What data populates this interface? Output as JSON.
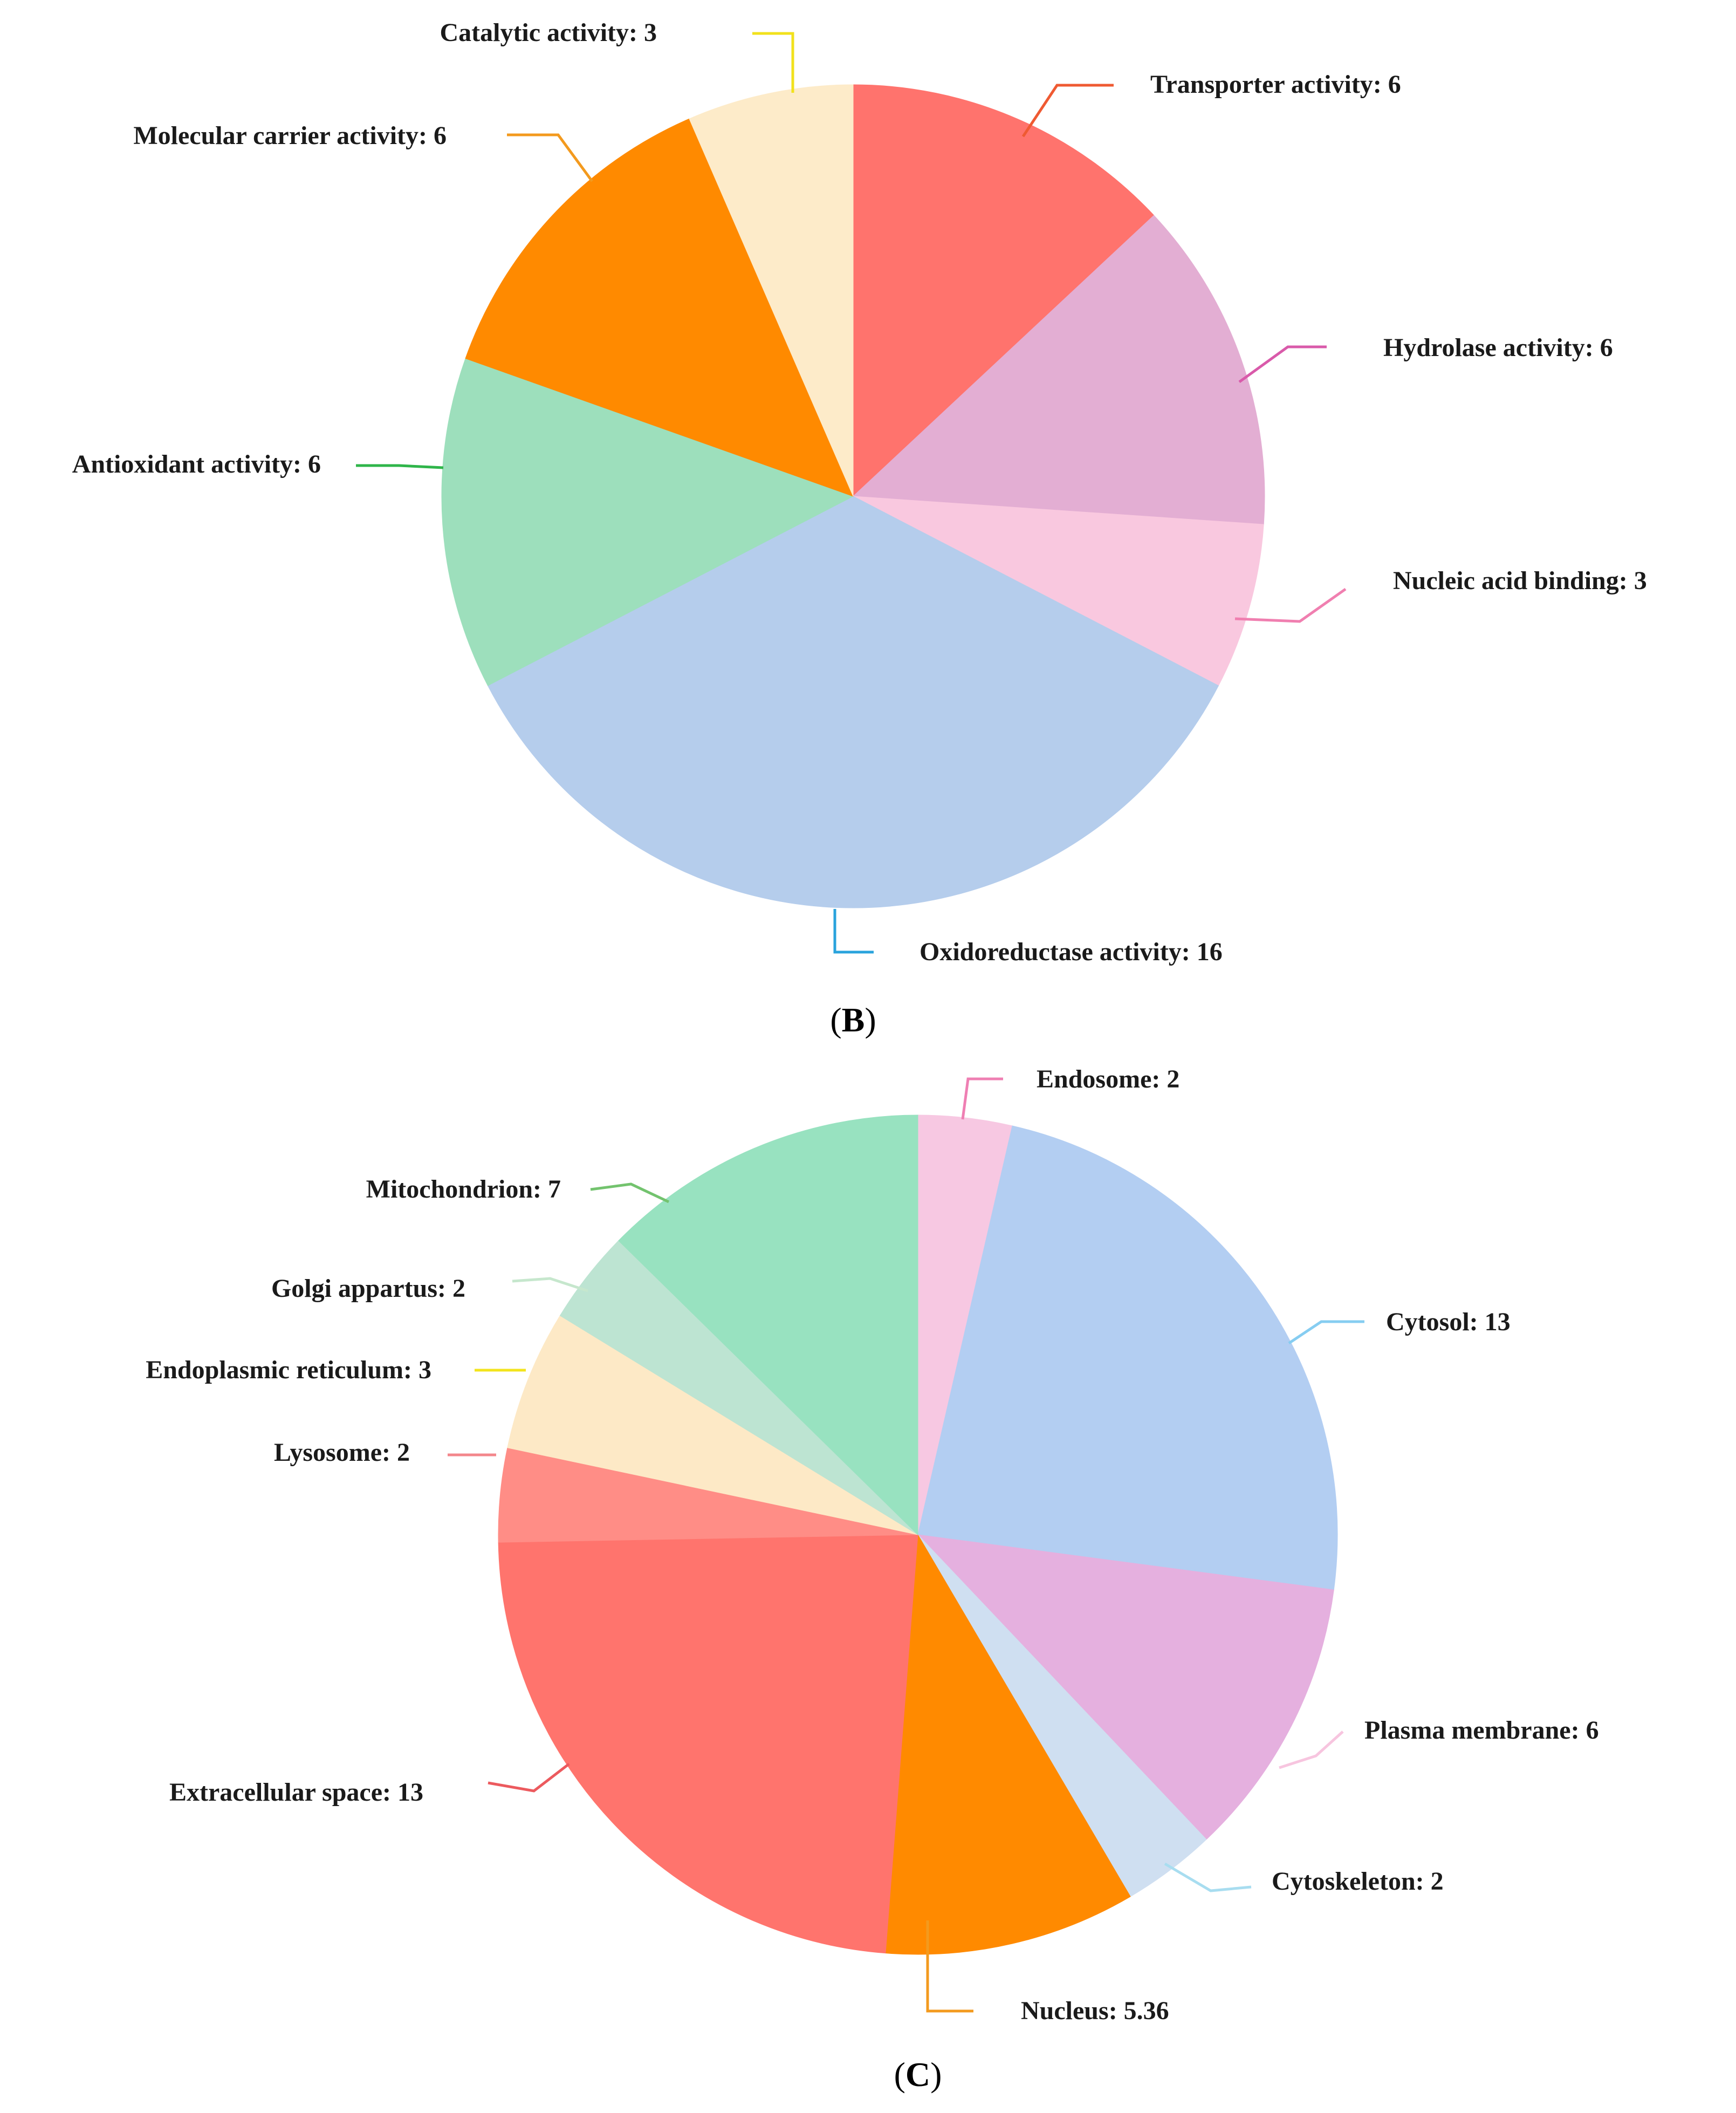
{
  "chart_data": [
    {
      "type": "pie",
      "panel_label": "B",
      "slices": [
        {
          "label": "Transporter activity",
          "value": 6,
          "color": "#ff736d",
          "line_color": "#ef5a32"
        },
        {
          "label": "Hydrolase activity",
          "value": 6,
          "color": "#e3aed3",
          "line_color": "#d95aaa"
        },
        {
          "label": "Nucleic acid binding",
          "value": 3,
          "color": "#f9c8df",
          "line_color": "#f07fb0"
        },
        {
          "label": "Oxidoreductase activity",
          "value": 16,
          "color": "#b5cdec",
          "line_color": "#2aa3dc"
        },
        {
          "label": "Antioxidant activity",
          "value": 6,
          "color": "#9ddfbc",
          "line_color": "#2fb54a"
        },
        {
          "label": "Molecular carrier activity",
          "value": 6,
          "color": "#ff8a00",
          "line_color": "#f39a1e"
        },
        {
          "label": "Catalytic activity",
          "value": 3,
          "color": "#fdebc9",
          "line_color": "#f2e11c"
        }
      ]
    },
    {
      "type": "pie",
      "panel_label": "C",
      "slices": [
        {
          "label": "Endosome",
          "value": 2,
          "color": "#f7c8e2",
          "line_color": "#ef7fb3"
        },
        {
          "label": "Cytosol",
          "value": 13,
          "color": "#b3cef2",
          "line_color": "#86cdf1"
        },
        {
          "label": "Plasma membrane",
          "value": 6,
          "color": "#e5b0df",
          "line_color": "#f7c5df"
        },
        {
          "label": "Cytoskeleton",
          "value": 2,
          "color": "#cfdff1",
          "line_color": "#a8ddf0"
        },
        {
          "label": "Nucleus",
          "value": 5.36,
          "color": "#ff8a00",
          "line_color": "#f39a1e"
        },
        {
          "label": "Extracellular space",
          "value": 13,
          "color": "#ff746d",
          "line_color": "#ec5a5e"
        },
        {
          "label": "Lysosome",
          "value": 2,
          "color": "#ff8d86",
          "line_color": "#f3868b"
        },
        {
          "label": "Endoplasmic reticulum",
          "value": 3,
          "color": "#fde9c6",
          "line_color": "#f3e41d"
        },
        {
          "label": "Golgi appartus",
          "value": 2,
          "color": "#bde4d2",
          "line_color": "#c6e7cd"
        },
        {
          "label": "Mitochondrion",
          "value": 7,
          "color": "#98e2c0",
          "line_color": "#73c36e"
        }
      ]
    }
  ]
}
